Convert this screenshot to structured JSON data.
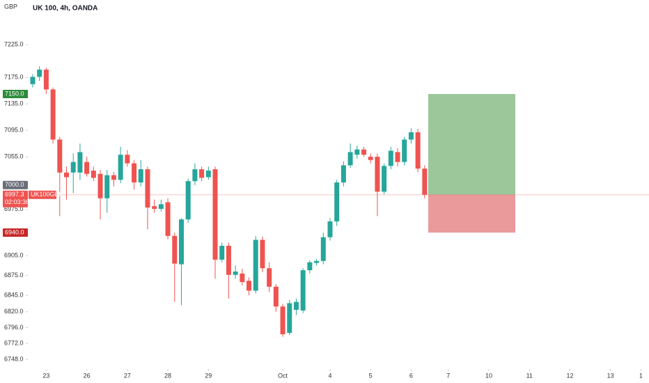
{
  "chart_data": {
    "type": "candlestick",
    "title": "UK 100, 4h, OANDA",
    "currency": "GBP",
    "up_color": "#26a69a",
    "down_color": "#ef5350",
    "open": [
      7165,
      7176,
      7187,
      7157,
      7081,
      7031,
      7031,
      7031,
      7047,
      7034,
      7029,
      6992,
      7027,
      7020,
      7058,
      7045,
      7016,
      7036,
      6980,
      6976,
      6986,
      6935,
      6892,
      6960,
      7018,
      7036,
      7024,
      7036,
      6899,
      6920,
      6876,
      6878,
      6867,
      6852,
      6929,
      6886,
      6858,
      6828,
      6788,
      6823,
      6822,
      6883,
      6894,
      6897,
      6933,
      6957,
      7016,
      7042,
      7058,
      7066,
      7055,
      7055,
      7002,
      7041,
      7062,
      7047,
      7081,
      7092,
      7037
    ],
    "high": [
      7180,
      7192,
      7190,
      7160,
      7085,
      7040,
      7060,
      7075,
      7055,
      7040,
      7035,
      7035,
      7032,
      7070,
      7065,
      7050,
      7050,
      7040,
      6990,
      6990,
      6992,
      6940,
      6962,
      7022,
      7045,
      7040,
      7040,
      7040,
      6925,
      6925,
      6890,
      6885,
      6872,
      6935,
      6934,
      6895,
      6862,
      6832,
      6838,
      6840,
      6886,
      6898,
      6900,
      6940,
      6962,
      7020,
      7048,
      7075,
      7072,
      7070,
      7060,
      7060,
      7045,
      7070,
      7068,
      7085,
      7098,
      7097,
      7042
    ],
    "low": [
      7160,
      7170,
      7150,
      7075,
      6965,
      6990,
      7000,
      7020,
      7025,
      7018,
      6960,
      6970,
      7010,
      7015,
      7040,
      7005,
      7010,
      6945,
      6970,
      6972,
      6930,
      6835,
      6830,
      6955,
      7012,
      7018,
      7020,
      6870,
      6895,
      6840,
      6870,
      6860,
      6845,
      6848,
      6880,
      6850,
      6820,
      6782,
      6785,
      6815,
      6818,
      6878,
      6890,
      6892,
      6928,
      6950,
      7010,
      7038,
      7052,
      7055,
      7045,
      6965,
      6998,
      7036,
      7040,
      7042,
      7075,
      7032,
      6992
    ],
    "close": [
      7176,
      7187,
      7157,
      7081,
      7031,
      7024,
      7047,
      7062,
      7029,
      7023,
      6992,
      7027,
      7020,
      7058,
      7045,
      7016,
      7036,
      6978,
      6976,
      6983,
      6935,
      6893,
      6960,
      7018,
      7036,
      7023,
      7034,
      6899,
      6920,
      6876,
      6881,
      6865,
      6852,
      6929,
      6886,
      6858,
      6828,
      6786,
      6833,
      6835,
      6883,
      6895,
      6897,
      6933,
      6957,
      7016,
      7042,
      7062,
      7066,
      7058,
      7050,
      7002,
      7041,
      7064,
      7047,
      7081,
      7092,
      7037,
      6997.3
    ],
    "xlim": [
      -0.72,
      91.2
    ],
    "xticks": [
      {
        "value": 2,
        "label": "23"
      },
      {
        "value": 8,
        "label": "26"
      },
      {
        "value": 14,
        "label": "27"
      },
      {
        "value": 20,
        "label": "28"
      },
      {
        "value": 26,
        "label": "29"
      },
      {
        "value": 37,
        "label": "Oct"
      },
      {
        "value": 44,
        "label": "4"
      },
      {
        "value": 50,
        "label": "5"
      },
      {
        "value": 56,
        "label": "6"
      },
      {
        "value": 61.5,
        "label": "7"
      },
      {
        "value": 67.5,
        "label": "10"
      },
      {
        "value": 73.5,
        "label": "11"
      },
      {
        "value": 79.5,
        "label": "12"
      },
      {
        "value": 85.5,
        "label": "13"
      },
      {
        "value": 90,
        "label": "1"
      }
    ],
    "ylim": [
      6733.2,
      7292.5
    ],
    "yticks": [
      {
        "value": 7225,
        "label": "7225.0"
      },
      {
        "value": 7175,
        "label": "7175.0"
      },
      {
        "value": 7135,
        "label": "7135.0"
      },
      {
        "value": 7095,
        "label": "7095.0"
      },
      {
        "value": 7055,
        "label": "7055.0"
      },
      {
        "value": 6975,
        "label": "6975.0"
      },
      {
        "value": 6905,
        "label": "6905.0"
      },
      {
        "value": 6875,
        "label": "6875.0"
      },
      {
        "value": 6845,
        "label": "6845.0"
      },
      {
        "value": 6820,
        "label": "6820.0"
      },
      {
        "value": 6796,
        "label": "6796.0"
      },
      {
        "value": 6772,
        "label": "6772.0"
      },
      {
        "value": 6748,
        "label": "6748.0"
      }
    ],
    "price_tags": [
      {
        "value": 7150,
        "label": "7150.0",
        "color": "#2e8b3a"
      },
      {
        "value": 7000,
        "label": "7000.0",
        "color": "#6a6d78"
      },
      {
        "value": 6940,
        "label": "6940.0",
        "color": "#c62828"
      }
    ],
    "last_price": {
      "value": 6997.3,
      "symbol": "UK100GBP",
      "countdown": "02:03:36",
      "color": "#ef5350"
    },
    "position": {
      "target": 7150,
      "entry": 6997.3,
      "stop": 6940,
      "profit_color": "#9bc79b",
      "loss_color": "#eb9a9c"
    }
  }
}
